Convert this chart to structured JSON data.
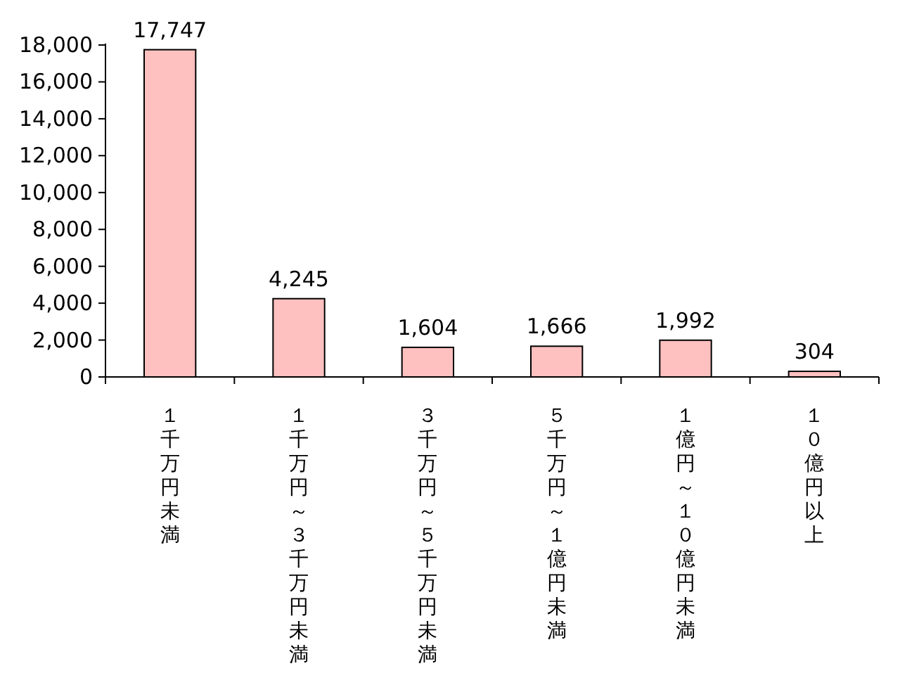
{
  "chart_data": {
    "type": "bar",
    "categories": [
      "１千万円未満",
      "１千万円～３千万円未満",
      "３千万円～５千万円未満",
      "５千万円～１億円未満",
      "１億円～１０億円未満",
      "１０億円以上"
    ],
    "values": [
      17747,
      4245,
      1604,
      1666,
      1992,
      304
    ],
    "value_labels": [
      "17,747",
      "4,245",
      "1,604",
      "1,666",
      "1,992",
      "304"
    ],
    "color": "#ffc0c0",
    "ylim": [
      0,
      18000
    ],
    "yticks": [
      {
        "value": 0,
        "label": "0"
      },
      {
        "value": 2000,
        "label": "2,000"
      },
      {
        "value": 4000,
        "label": "4,000"
      },
      {
        "value": 6000,
        "label": "6,000"
      },
      {
        "value": 8000,
        "label": "8,000"
      },
      {
        "value": 10000,
        "label": "10,000"
      },
      {
        "value": 12000,
        "label": "12,000"
      },
      {
        "value": 14000,
        "label": "14,000"
      },
      {
        "value": 16000,
        "label": "16,000"
      },
      {
        "value": 18000,
        "label": "18,000"
      }
    ],
    "grid": false
  }
}
